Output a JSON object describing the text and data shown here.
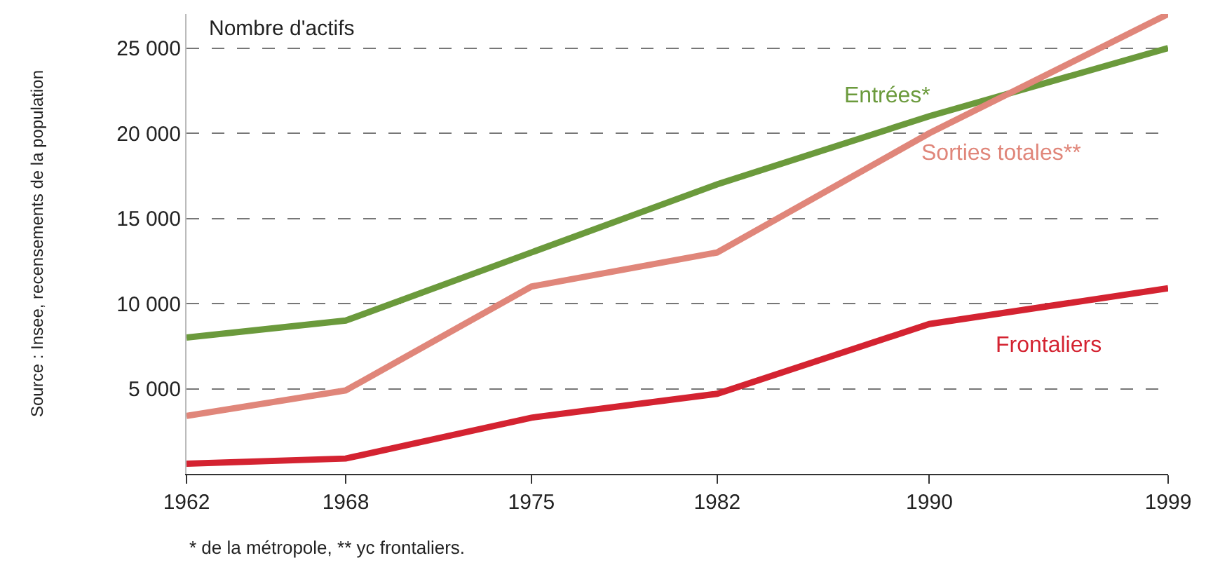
{
  "chart_data": {
    "type": "line",
    "ylabel": "Nombre d'actifs",
    "x": [
      1962,
      1968,
      1975,
      1982,
      1990,
      1999
    ],
    "xlim": [
      1962,
      1999
    ],
    "xticks": [
      1962,
      1968,
      1975,
      1982,
      1990,
      1999
    ],
    "ylim": [
      0,
      27000
    ],
    "yticks": [
      {
        "value": 5000,
        "label": "5 000"
      },
      {
        "value": 10000,
        "label": "10 000"
      },
      {
        "value": 15000,
        "label": "15 000"
      },
      {
        "value": 20000,
        "label": "20 000"
      },
      {
        "value": 25000,
        "label": "25 000"
      }
    ],
    "grid": "y",
    "legend": false,
    "marker": "none",
    "line_style": "solid",
    "series": [
      {
        "name": "Entrées*",
        "color": "#6b9a3c",
        "values": [
          8000,
          9000,
          13000,
          17000,
          21000,
          25000
        ]
      },
      {
        "name": "Sorties totales**",
        "color": "#e0867a",
        "values": [
          3400,
          4900,
          11000,
          13000,
          20000,
          27000
        ]
      },
      {
        "name": "Frontaliers",
        "color": "#d42331",
        "values": [
          600,
          900,
          3300,
          4700,
          8800,
          10900
        ]
      }
    ],
    "annotations": [
      "Source : Insee, recensements de la population",
      "* de la métropole, ** yc frontaliers."
    ]
  }
}
